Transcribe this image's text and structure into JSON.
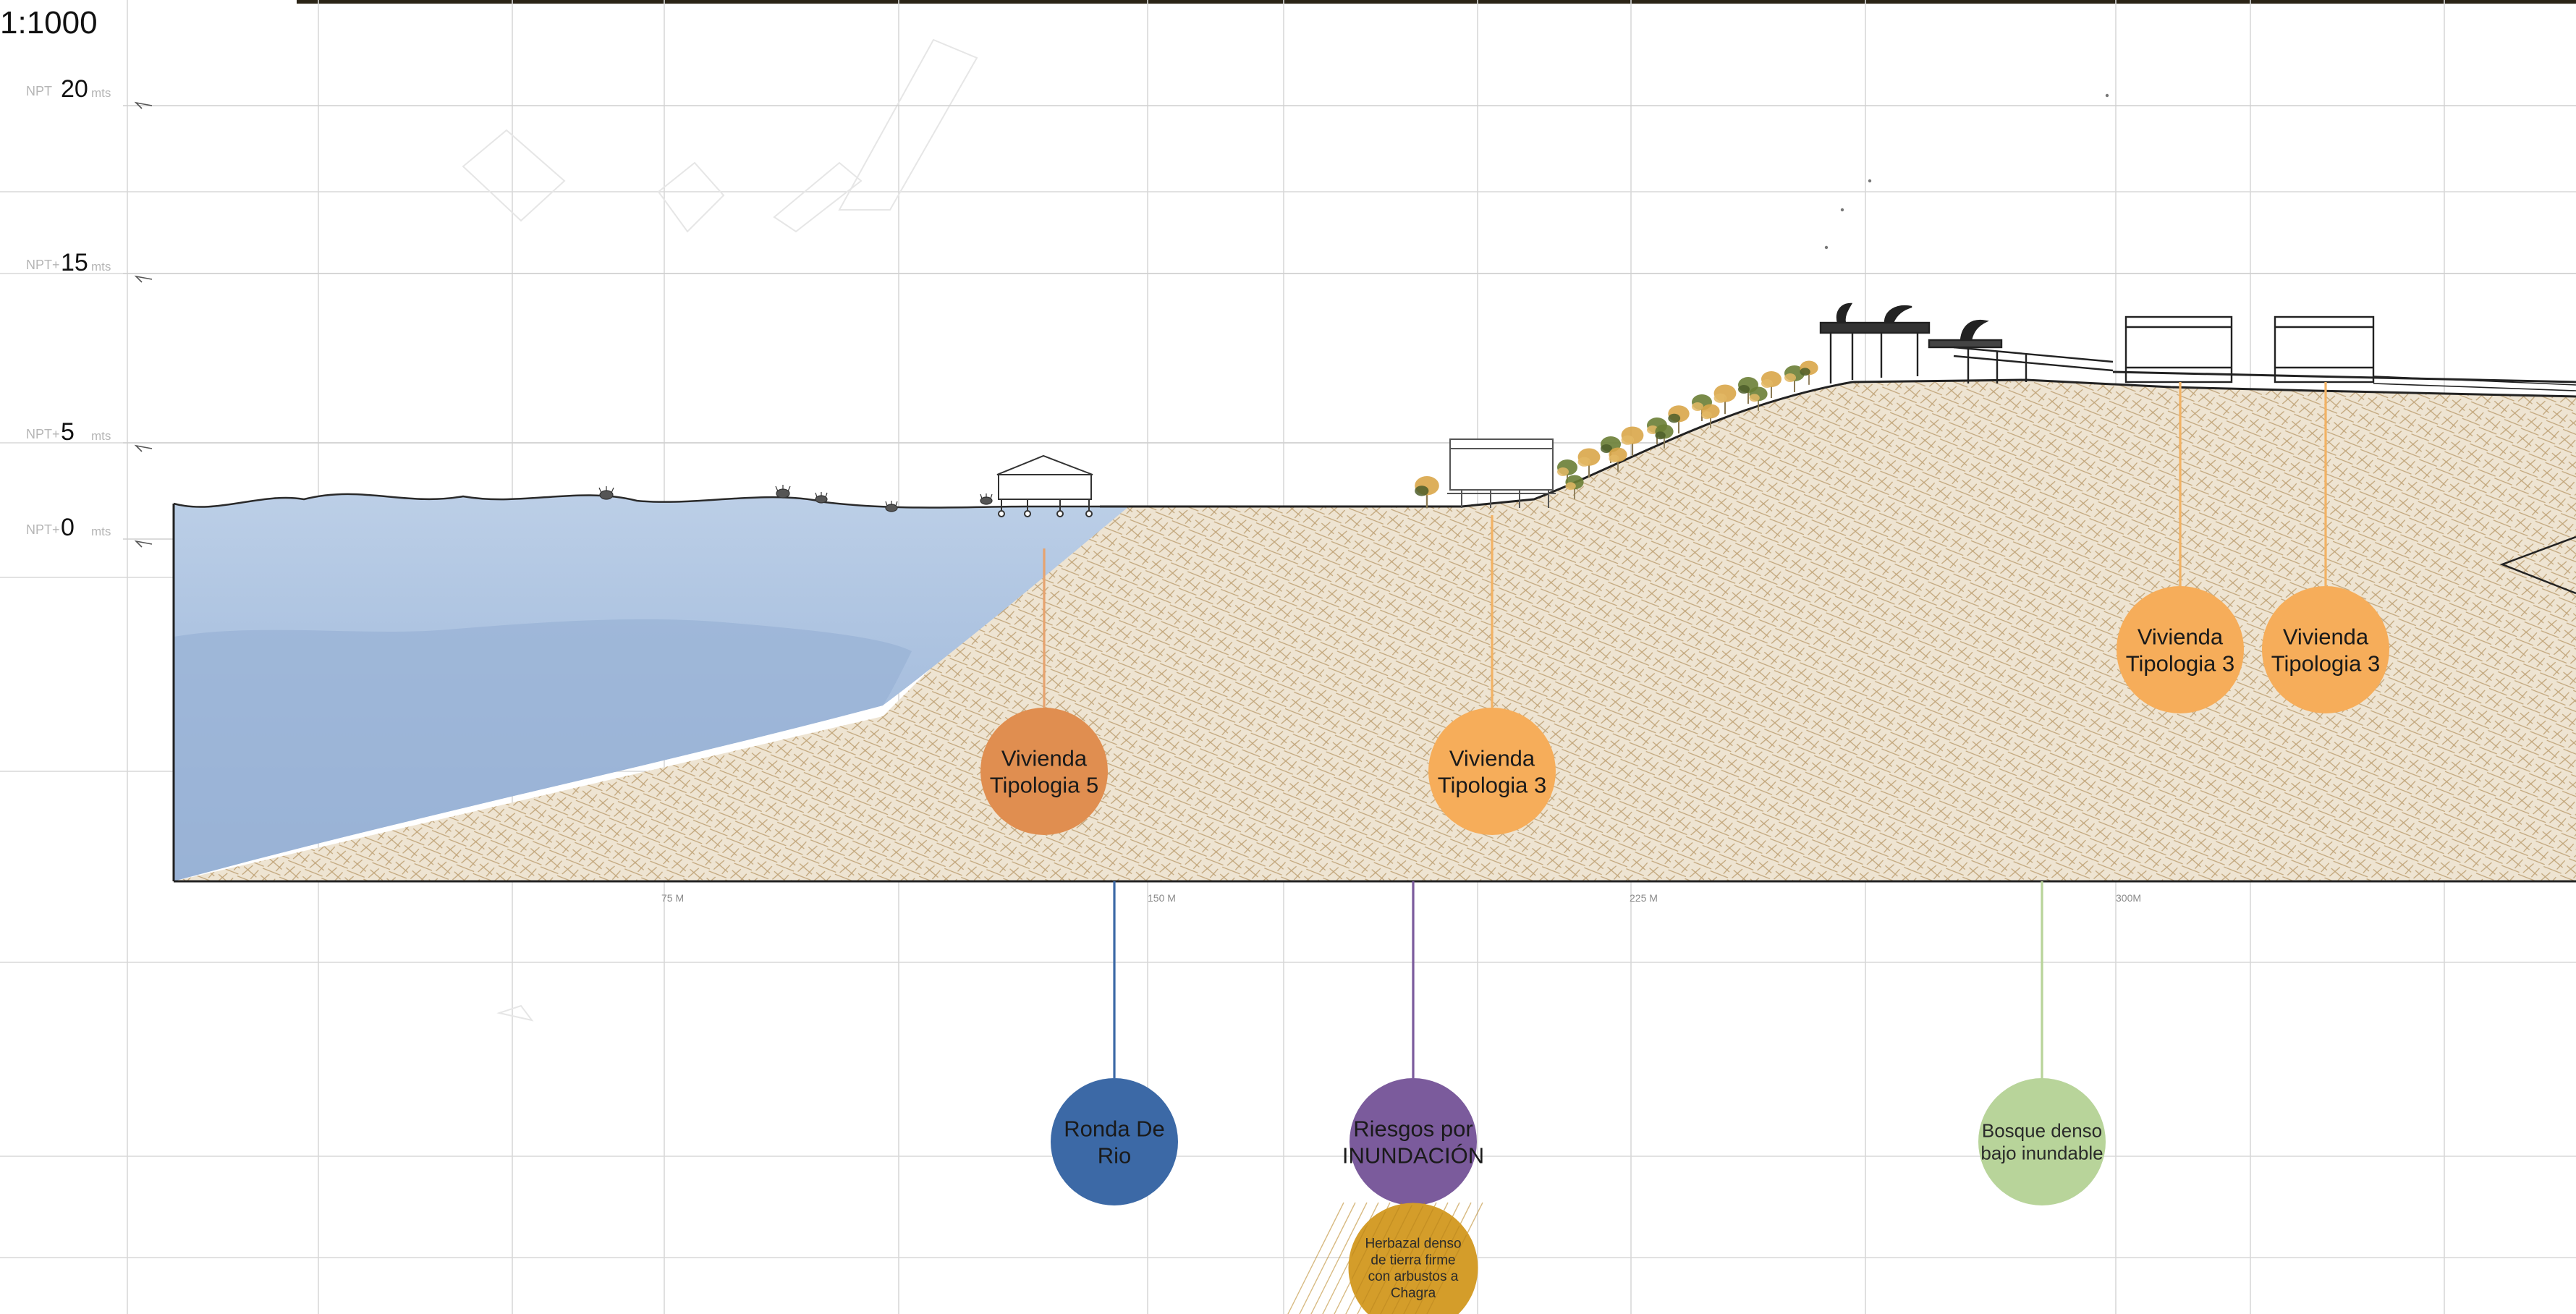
{
  "scale": "1:1000",
  "levels": [
    {
      "prefix": "NPT",
      "value": "20",
      "unit": "mts"
    },
    {
      "prefix": "NPT+",
      "value": "15",
      "unit": "mts"
    },
    {
      "prefix": "NPT+",
      "value": "5",
      "unit": "mts"
    },
    {
      "prefix": "NPT+",
      "value": "0",
      "unit": "mts"
    }
  ],
  "distances": [
    "75 M",
    "150 M",
    "225 M",
    "300M"
  ],
  "callouts": [
    {
      "id": "vivienda-tipologia-5",
      "lines": [
        "Vivienda",
        "Tipologia 5"
      ],
      "color": "#e08e50"
    },
    {
      "id": "vivienda-tipologia-3-a",
      "lines": [
        "Vivienda",
        "Tipologia 3"
      ],
      "color": "#f6ad5a"
    },
    {
      "id": "vivienda-tipologia-3-b",
      "lines": [
        "Vivienda",
        "Tipologia 3"
      ],
      "color": "#f6ad5a"
    },
    {
      "id": "vivienda-tipologia-3-c",
      "lines": [
        "Vivienda",
        "Tipologia 3"
      ],
      "color": "#f6ad5a"
    },
    {
      "id": "ronda-de-rio",
      "lines": [
        "Ronda De",
        "Rio"
      ],
      "color": "#3c69a6"
    },
    {
      "id": "riesgos-inundacion",
      "lines": [
        "Riesgos por",
        "INUNDACIÓN"
      ],
      "color": "#7b5b9c"
    },
    {
      "id": "bosque-denso",
      "lines": [
        "Bosque denso",
        "bajo inundable"
      ],
      "color": "#b8d49a"
    },
    {
      "id": "herbazal-denso",
      "lines": [
        "Herbazal denso",
        "de tierra firme",
        "con arbustos a",
        "Chagra"
      ],
      "color": "#d49d2a"
    }
  ],
  "colors": {
    "water": "#b5c8e3",
    "water_deep": "#9db6d8",
    "soil": "#e7dcc7",
    "soil_hatch": "#c4ab80",
    "grid": "#d6d6d6",
    "tree_canopy": "#6a7e35",
    "tree_autumn": "#d9a649"
  }
}
